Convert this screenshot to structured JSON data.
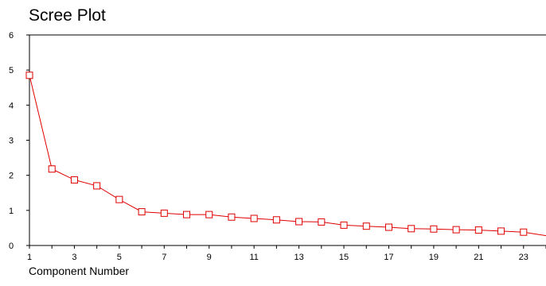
{
  "chart_data": {
    "type": "line",
    "title": "Scree Plot",
    "xlabel": "Component Number",
    "ylabel": "",
    "x": [
      1,
      2,
      3,
      4,
      5,
      6,
      7,
      8,
      9,
      10,
      11,
      12,
      13,
      14,
      15,
      16,
      17,
      18,
      19,
      20,
      21,
      22,
      23,
      24
    ],
    "series": [
      {
        "values": [
          4.85,
          2.18,
          1.87,
          1.7,
          1.31,
          0.96,
          0.92,
          0.88,
          0.88,
          0.81,
          0.77,
          0.73,
          0.68,
          0.67,
          0.58,
          0.55,
          0.52,
          0.48,
          0.47,
          0.45,
          0.44,
          0.41,
          0.38,
          0.28
        ],
        "color": "#e00000",
        "marker": "square"
      }
    ],
    "xlim": [
      1,
      24
    ],
    "ylim": [
      0,
      6
    ],
    "xticks": [
      1,
      3,
      5,
      7,
      9,
      11,
      13,
      15,
      17,
      19,
      21,
      23
    ],
    "yticks": [
      0,
      1,
      2,
      3,
      4,
      5,
      6
    ],
    "grid": false,
    "legend": "none"
  }
}
